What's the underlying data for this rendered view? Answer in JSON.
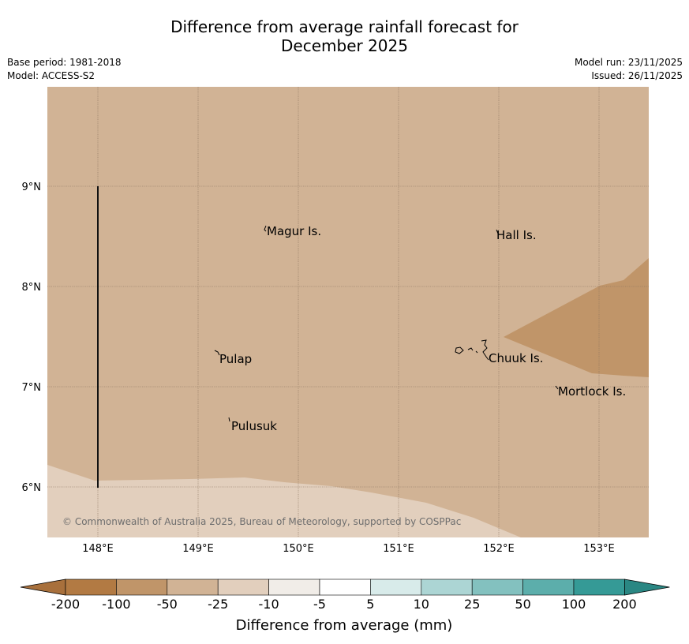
{
  "header": {
    "title_line1": "Difference from average rainfall forecast for",
    "title_line2": "December 2025",
    "base_period": "Base period: 1981-2018",
    "model": "Model: ACCESS-S2",
    "model_run": "Model run: 23/11/2025",
    "issued": "Issued: 26/11/2025"
  },
  "map": {
    "lon_labels": [
      "148°E",
      "149°E",
      "150°E",
      "151°E",
      "152°E",
      "153°E"
    ],
    "lat_labels": [
      "9°N",
      "8°N",
      "7°N",
      "6°N"
    ],
    "places": [
      "Magur Is.",
      "Hall Is.",
      "Pulap",
      "Chuuk Is.",
      "Mortlock Is.",
      "Pulusuk"
    ],
    "copyright": "© Commonwealth of Australia 2025, Bureau of Meteorology, supported by COSPPac",
    "fill_colors": {
      "m50_to_m25": "#d1b395",
      "m100_to_m50": "#c09569",
      "m25_to_m10": "#e2cfbd"
    }
  },
  "colorbar": {
    "ticks": [
      "-200",
      "-100",
      "-50",
      "-25",
      "-10",
      "-5",
      "5",
      "10",
      "25",
      "50",
      "100",
      "200"
    ],
    "colors": [
      "#a8703c",
      "#b27a43",
      "#c09569",
      "#d1b395",
      "#e2cfbd",
      "#f1ede8",
      "#ffffff",
      "#d8ebea",
      "#acd5d4",
      "#83c1bf",
      "#5caeab",
      "#359a96",
      "#2a8783"
    ],
    "title": "Difference from average (mm)"
  }
}
